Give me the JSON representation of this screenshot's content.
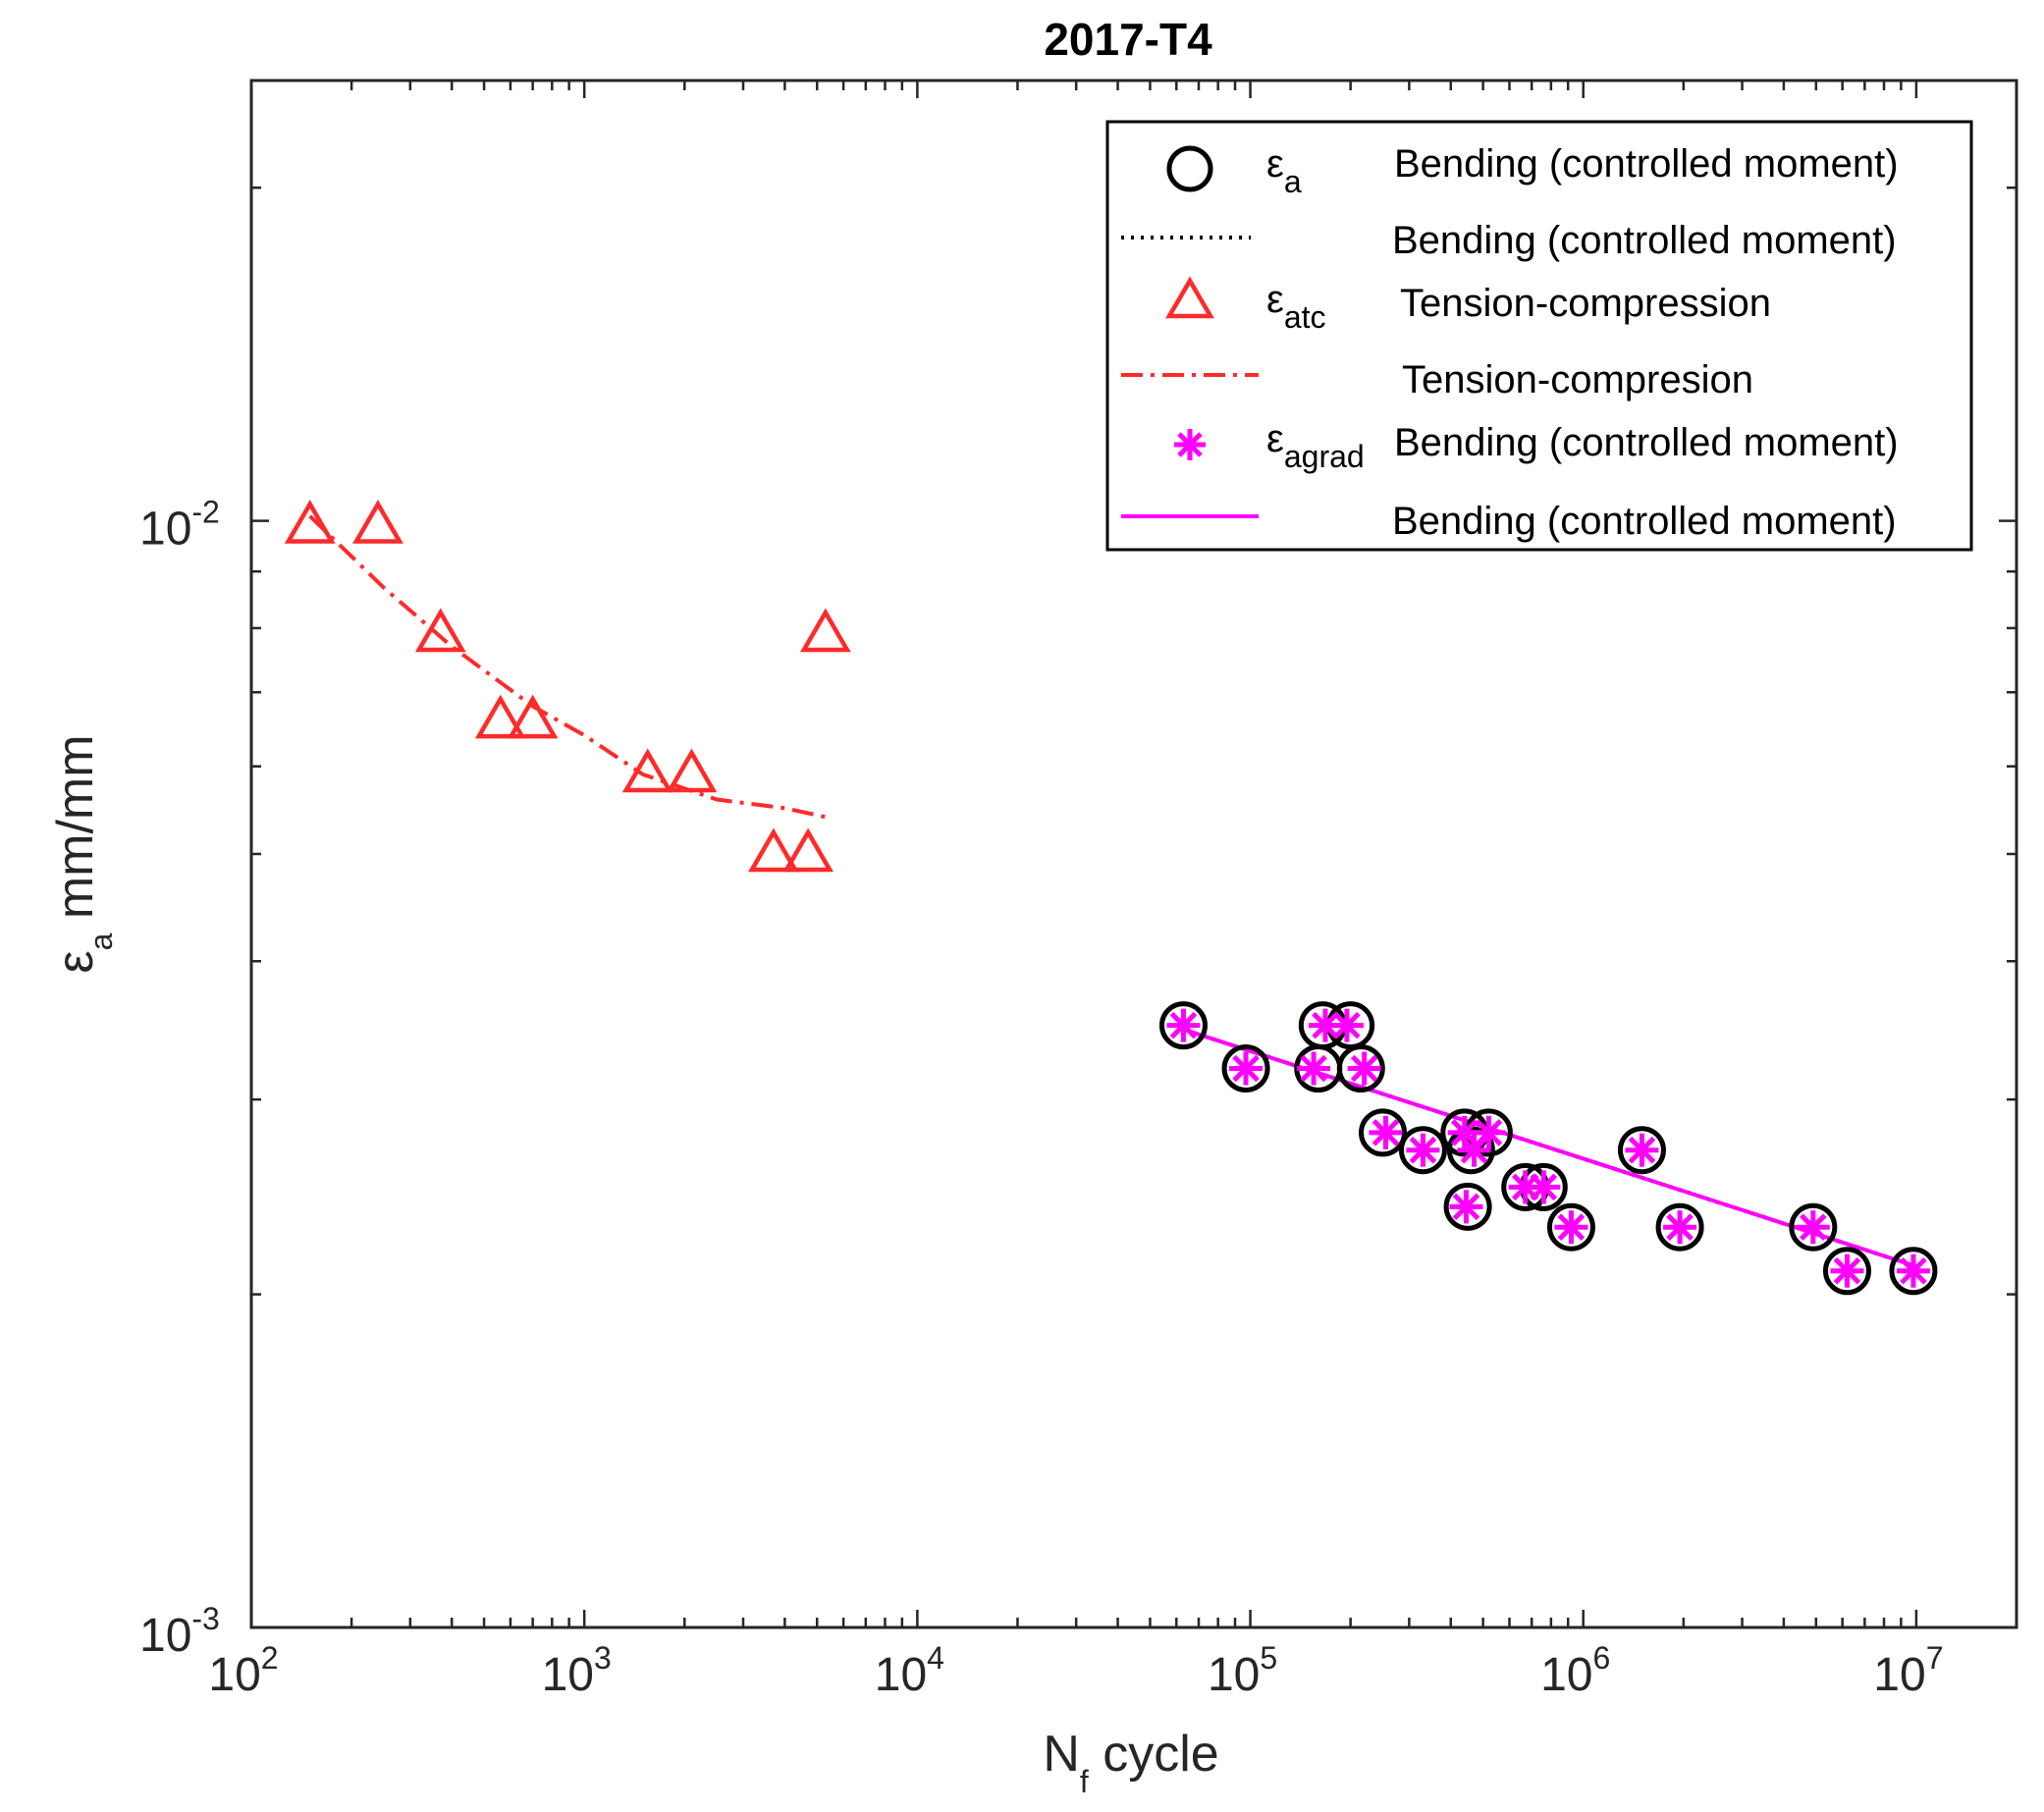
{
  "chart_data": {
    "type": "scatter",
    "title": "2017-T4",
    "xlabel": {
      "main": "N",
      "sub": "f",
      "rest": " cycle"
    },
    "ylabel": {
      "main": "ε",
      "sub": "a",
      "rest": " mm/mm"
    },
    "xscale": "log",
    "yscale": "log",
    "xlim": [
      100,
      20000000
    ],
    "ylim": [
      0.001,
      0.025
    ],
    "x_ticks": [
      {
        "base": "10",
        "exp": "2"
      },
      {
        "base": "10",
        "exp": "3"
      },
      {
        "base": "10",
        "exp": "4"
      },
      {
        "base": "10",
        "exp": "5"
      },
      {
        "base": "10",
        "exp": "6"
      },
      {
        "base": "10",
        "exp": "7"
      }
    ],
    "y_ticks": [
      {
        "base": "10",
        "exp": "-3"
      },
      {
        "base": "10",
        "exp": "-2"
      }
    ],
    "legend_position": "top-right",
    "legend": [
      {
        "symbol": "ε",
        "sub": "a",
        "label": "Bending (controlled moment)"
      },
      {
        "symbol": "",
        "sub": "",
        "label": "Bending (controlled moment)"
      },
      {
        "symbol": "ε",
        "sub": "atc",
        "label": "Tension-compression"
      },
      {
        "symbol": "",
        "sub": "",
        "label": "Tension-compresion"
      },
      {
        "symbol": "ε",
        "sub": "agrad",
        "label": "Bending (controlled moment)"
      },
      {
        "symbol": "",
        "sub": "",
        "label": "Bending (controlled moment)"
      }
    ],
    "series": [
      {
        "name": "εa Bending (controlled moment)",
        "kind": "markers",
        "marker": "circle",
        "color": "#000000",
        "x": [
          63000,
          97000,
          160000,
          165000,
          200000,
          215000,
          250000,
          330000,
          440000,
          450000,
          460000,
          520000,
          670000,
          760000,
          920000,
          1500000,
          1950000,
          4900000,
          6200000,
          9800000
        ],
        "y": [
          0.0035,
          0.0032,
          0.0032,
          0.0035,
          0.0035,
          0.0032,
          0.0028,
          0.0027,
          0.0028,
          0.0024,
          0.0027,
          0.0028,
          0.0025,
          0.0025,
          0.0023,
          0.0027,
          0.0023,
          0.0023,
          0.0021,
          0.0021
        ]
      },
      {
        "name": "Bending (controlled moment) fit",
        "kind": "line",
        "dash": "dotted",
        "color": "#000000",
        "x": [
          63000,
          10000000
        ],
        "y": [
          0.00347,
          0.00212
        ]
      },
      {
        "name": "εatc Tension-compression",
        "kind": "markers",
        "marker": "triangle",
        "color": "#ff2a2a",
        "x": [
          150,
          240,
          370,
          560,
          700,
          1550,
          2100,
          3700,
          4700,
          5300
        ],
        "y": [
          0.0099,
          0.0099,
          0.0079,
          0.0066,
          0.0066,
          0.0059,
          0.0059,
          0.005,
          0.005,
          0.0079
        ]
      },
      {
        "name": "Tension-compresion fit",
        "kind": "line",
        "dash": "dashdot",
        "color": "#ff2a2a",
        "x": [
          150,
          250,
          400,
          700,
          1000,
          1500,
          2500,
          4000,
          5300
        ],
        "y": [
          0.0101,
          0.0087,
          0.0077,
          0.0068,
          0.0064,
          0.0059,
          0.0056,
          0.0055,
          0.0054
        ]
      },
      {
        "name": "εagrad Bending (controlled moment)",
        "kind": "markers",
        "marker": "asterisk",
        "color": "#ff00ff",
        "x": [
          63000,
          97000,
          155000,
          168000,
          195000,
          220000,
          255000,
          330000,
          440000,
          445000,
          470000,
          520000,
          670000,
          760000,
          920000,
          1500000,
          1950000,
          4900000,
          6200000,
          9800000
        ],
        "y": [
          0.0035,
          0.0032,
          0.0032,
          0.0035,
          0.0035,
          0.0032,
          0.0028,
          0.0027,
          0.0028,
          0.0024,
          0.0027,
          0.0028,
          0.0025,
          0.0025,
          0.0023,
          0.0027,
          0.0023,
          0.0023,
          0.0021,
          0.0021
        ]
      },
      {
        "name": "Bending (controlled moment) fit",
        "kind": "line",
        "dash": "solid",
        "color": "#ff00ff",
        "x": [
          63000,
          10000000
        ],
        "y": [
          0.00347,
          0.00212
        ]
      }
    ]
  }
}
